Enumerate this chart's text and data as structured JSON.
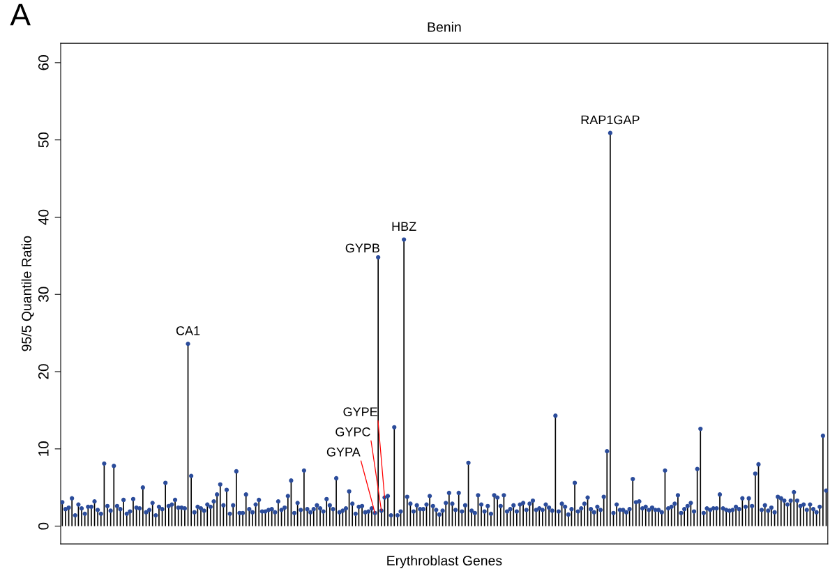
{
  "chart_data": {
    "type": "lollipop",
    "title": "Benin",
    "xlabel": "Erythroblast Genes",
    "ylabel": "95/5 Quantile Ratio",
    "annotations": [
      "A"
    ],
    "ylim": [
      -2.3,
      62.5
    ],
    "yticks": [
      0,
      10,
      20,
      30,
      40,
      50,
      60
    ],
    "marker": "circle",
    "color": "#2b4c9b",
    "categories": [
      null,
      null,
      null,
      null,
      null,
      null,
      null,
      null,
      null,
      null,
      null,
      null,
      null,
      null,
      null,
      null,
      null,
      null,
      null,
      null,
      null,
      null,
      null,
      null,
      null,
      null,
      null,
      null,
      null,
      null,
      null,
      null,
      null,
      null,
      null,
      null,
      null,
      null,
      null,
      null,
      null,
      null,
      null,
      null,
      null,
      null,
      null,
      null,
      null,
      null,
      null,
      null,
      null,
      null,
      null,
      null,
      null,
      null,
      null,
      null,
      null,
      null,
      null,
      null,
      null,
      null,
      null,
      null,
      null,
      null,
      null,
      null,
      null,
      null,
      null,
      null,
      null,
      null,
      null,
      null,
      null,
      null,
      null,
      null,
      null,
      null,
      null,
      null,
      null,
      null,
      null,
      null,
      null,
      null,
      null,
      null,
      null,
      null,
      null,
      null,
      null,
      null,
      null,
      null,
      null,
      null,
      null,
      null,
      null,
      null,
      null,
      null,
      null,
      null,
      null,
      null,
      null,
      null,
      null,
      null,
      null,
      null,
      null,
      null,
      null,
      null,
      null,
      null,
      null,
      null,
      null,
      null,
      null,
      null,
      null,
      null,
      null,
      null,
      null,
      null,
      null,
      null,
      null,
      null,
      null,
      null,
      null,
      null,
      null,
      null,
      null,
      null,
      null,
      null,
      null,
      null,
      null,
      null,
      null,
      null,
      null,
      null,
      null,
      null,
      null,
      null,
      null,
      null,
      null,
      null,
      null,
      null,
      null,
      null,
      null,
      null,
      null,
      null,
      null,
      null,
      null,
      null,
      null,
      null,
      null,
      null,
      null,
      null,
      null,
      null,
      null,
      null,
      null,
      null,
      null,
      null,
      null,
      null,
      null,
      null,
      null,
      null,
      null,
      null,
      null,
      null,
      null,
      null,
      null,
      null,
      null,
      null,
      null,
      null,
      null,
      null,
      null,
      null,
      null,
      null,
      null,
      null,
      null,
      null,
      null,
      null,
      null,
      null,
      null,
      null,
      null,
      null,
      null,
      null,
      null,
      null,
      null,
      null
    ],
    "values": [
      3.1,
      2.2,
      2.4,
      3.6,
      1.4,
      2.8,
      2.3,
      1.6,
      2.5,
      2.5,
      3.2,
      2.1,
      1.6,
      8.1,
      2.6,
      2.0,
      7.8,
      2.6,
      2.2,
      3.4,
      1.6,
      1.9,
      3.5,
      2.4,
      2.3,
      5.0,
      1.8,
      2.1,
      3.0,
      1.4,
      2.5,
      2.2,
      5.6,
      2.6,
      2.8,
      3.4,
      2.4,
      2.4,
      2.3,
      23.6,
      6.5,
      1.8,
      2.5,
      2.3,
      2.0,
      2.8,
      2.5,
      3.2,
      4.1,
      5.4,
      2.7,
      4.7,
      1.6,
      2.7,
      7.1,
      1.7,
      1.7,
      4.1,
      2.2,
      1.8,
      2.8,
      3.4,
      1.9,
      1.9,
      2.1,
      2.2,
      1.8,
      3.2,
      2.1,
      2.4,
      3.9,
      5.9,
      1.7,
      3.0,
      2.1,
      7.2,
      2.2,
      1.8,
      2.2,
      2.7,
      2.3,
      1.9,
      3.5,
      2.7,
      2.2,
      6.2,
      1.8,
      2.0,
      2.3,
      4.5,
      2.9,
      1.6,
      2.5,
      2.6,
      1.8,
      1.9,
      2.3,
      1.7,
      34.8,
      2.0,
      3.7,
      3.9,
      1.4,
      12.8,
      1.4,
      1.9,
      37.1,
      3.8,
      2.9,
      1.9,
      2.7,
      2.2,
      2.2,
      2.8,
      3.9,
      2.6,
      2.1,
      1.5,
      2.0,
      3.0,
      4.3,
      2.9,
      2.1,
      4.3,
      1.9,
      2.7,
      8.2,
      2.0,
      1.7,
      4.0,
      2.8,
      1.9,
      2.6,
      1.6,
      4.0,
      3.7,
      2.6,
      4.0,
      1.9,
      2.2,
      2.7,
      1.9,
      2.8,
      3.0,
      2.1,
      2.9,
      3.3,
      2.1,
      2.3,
      2.1,
      2.8,
      2.4,
      2.0,
      14.3,
      1.9,
      2.9,
      2.5,
      1.5,
      2.2,
      5.6,
      1.9,
      2.3,
      2.9,
      3.7,
      2.2,
      1.8,
      2.5,
      2.1,
      3.8,
      9.7,
      50.9,
      1.7,
      2.8,
      2.1,
      2.1,
      1.8,
      2.2,
      6.1,
      3.1,
      3.2,
      2.3,
      2.5,
      2.1,
      2.4,
      2.1,
      2.1,
      1.8,
      7.2,
      2.3,
      2.5,
      2.9,
      4.0,
      1.7,
      2.2,
      2.6,
      3.0,
      1.9,
      7.4,
      12.6,
      1.7,
      2.3,
      2.1,
      2.3,
      2.3,
      4.1,
      2.3,
      2.1,
      2.0,
      2.1,
      2.5,
      2.2,
      3.6,
      2.5,
      3.6,
      2.6,
      6.8,
      8.0,
      2.1,
      2.7,
      2.0,
      2.4,
      1.8,
      3.8,
      3.6,
      3.3,
      2.8,
      3.3,
      4.4,
      3.3,
      2.6,
      2.8,
      2.1,
      2.8,
      2.2,
      1.8,
      2.5,
      11.7,
      4.6
    ],
    "value_labels": [
      null,
      null,
      null,
      null,
      null,
      null,
      null,
      null,
      null,
      null,
      null,
      null,
      null,
      null,
      null,
      null,
      null,
      null,
      null,
      null,
      null,
      null,
      null,
      null,
      null,
      null,
      null,
      null,
      null,
      null,
      null,
      null,
      null,
      null,
      null,
      null,
      null,
      null,
      null,
      "CA1",
      null,
      null,
      null,
      null,
      null,
      null,
      null,
      null,
      null,
      null,
      null,
      null,
      null,
      null,
      null,
      null,
      null,
      null,
      null,
      null,
      null,
      null,
      null,
      null,
      null,
      null,
      null,
      null,
      null,
      null,
      null,
      null,
      null,
      null,
      null,
      null,
      null,
      null,
      null,
      null,
      null,
      null,
      null,
      null,
      null,
      null,
      null,
      null,
      null,
      null,
      null,
      null,
      null,
      null,
      null,
      null,
      null,
      "GYPA",
      "GYPB",
      "GYPC",
      "GYPE",
      null,
      null,
      null,
      null,
      null,
      "HBZ",
      null,
      null,
      null,
      null,
      null,
      null,
      null,
      null,
      null,
      null,
      null,
      null,
      null,
      null,
      null,
      null,
      null,
      null,
      null,
      null,
      null,
      null,
      null,
      null,
      null,
      null,
      null,
      null,
      null,
      null,
      null,
      null,
      null,
      null,
      null,
      null,
      null,
      null,
      null,
      null,
      null,
      null,
      null,
      null,
      null,
      null,
      null,
      null,
      null,
      null,
      null,
      null,
      null,
      null,
      null,
      null,
      null,
      null,
      null,
      null,
      null,
      null,
      null,
      "RAP1GAP",
      null,
      null,
      null,
      null,
      null,
      null,
      null,
      null,
      null,
      null,
      null,
      null,
      null,
      null,
      null,
      null,
      null,
      null,
      null,
      null,
      null,
      null,
      null,
      null,
      null,
      null,
      null,
      null,
      null,
      null,
      null,
      null,
      null,
      null,
      null,
      null,
      null,
      null,
      null,
      null,
      null,
      null,
      null,
      null,
      null,
      null,
      null,
      null,
      null,
      null,
      null,
      null,
      null,
      null,
      null,
      null,
      null,
      null,
      null,
      null,
      null,
      null,
      null,
      null,
      null,
      null,
      null
    ]
  }
}
